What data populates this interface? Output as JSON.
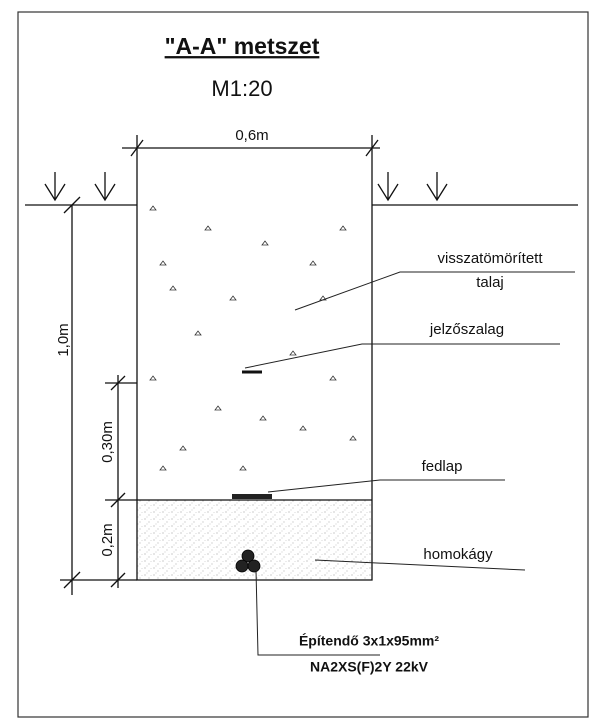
{
  "title": "\"A-A\" metszet",
  "scale": "M1:20",
  "dimensions": {
    "width": "0,6m",
    "depth": "1,0m",
    "upper": "0,30m",
    "lower": "0,2m"
  },
  "labels": {
    "backfill": [
      "visszatömörített",
      "talaj"
    ],
    "tape": "jelzőszalag",
    "cover": "fedlap",
    "sand": "homokágy"
  },
  "cable": [
    "Építendő 3x1x95mm²",
    "NA2XS(F)2Y 22kV"
  ]
}
